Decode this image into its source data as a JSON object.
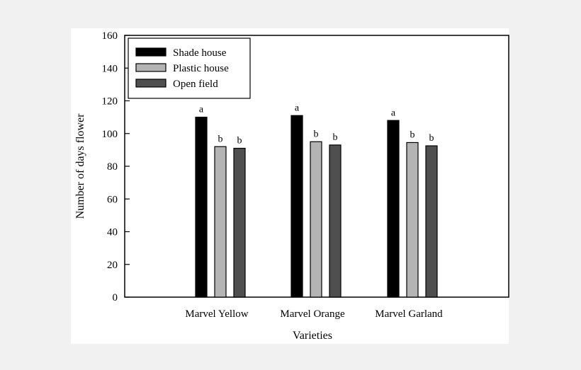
{
  "chart_data": {
    "type": "bar",
    "xlabel": "Varieties",
    "ylabel": "Number of days flower",
    "ylim": [
      0,
      160
    ],
    "yticks": [
      0,
      20,
      40,
      60,
      80,
      100,
      120,
      140,
      160
    ],
    "categories": [
      "Marvel Yellow",
      "Marvel Orange",
      "Marvel Garland"
    ],
    "series": [
      {
        "name": "Shade house",
        "color": "#000000",
        "values": [
          110,
          111,
          108
        ],
        "labels": [
          "a",
          "a",
          "a"
        ]
      },
      {
        "name": "Plastic house",
        "color": "#b4b4b4",
        "values": [
          92,
          95,
          94.5
        ],
        "labels": [
          "b",
          "b",
          "b"
        ]
      },
      {
        "name": "Open field",
        "color": "#4f4f4f",
        "values": [
          91,
          93,
          92.5
        ],
        "labels": [
          "b",
          "b",
          "b"
        ]
      }
    ],
    "legend": "top-left",
    "grid": false
  }
}
